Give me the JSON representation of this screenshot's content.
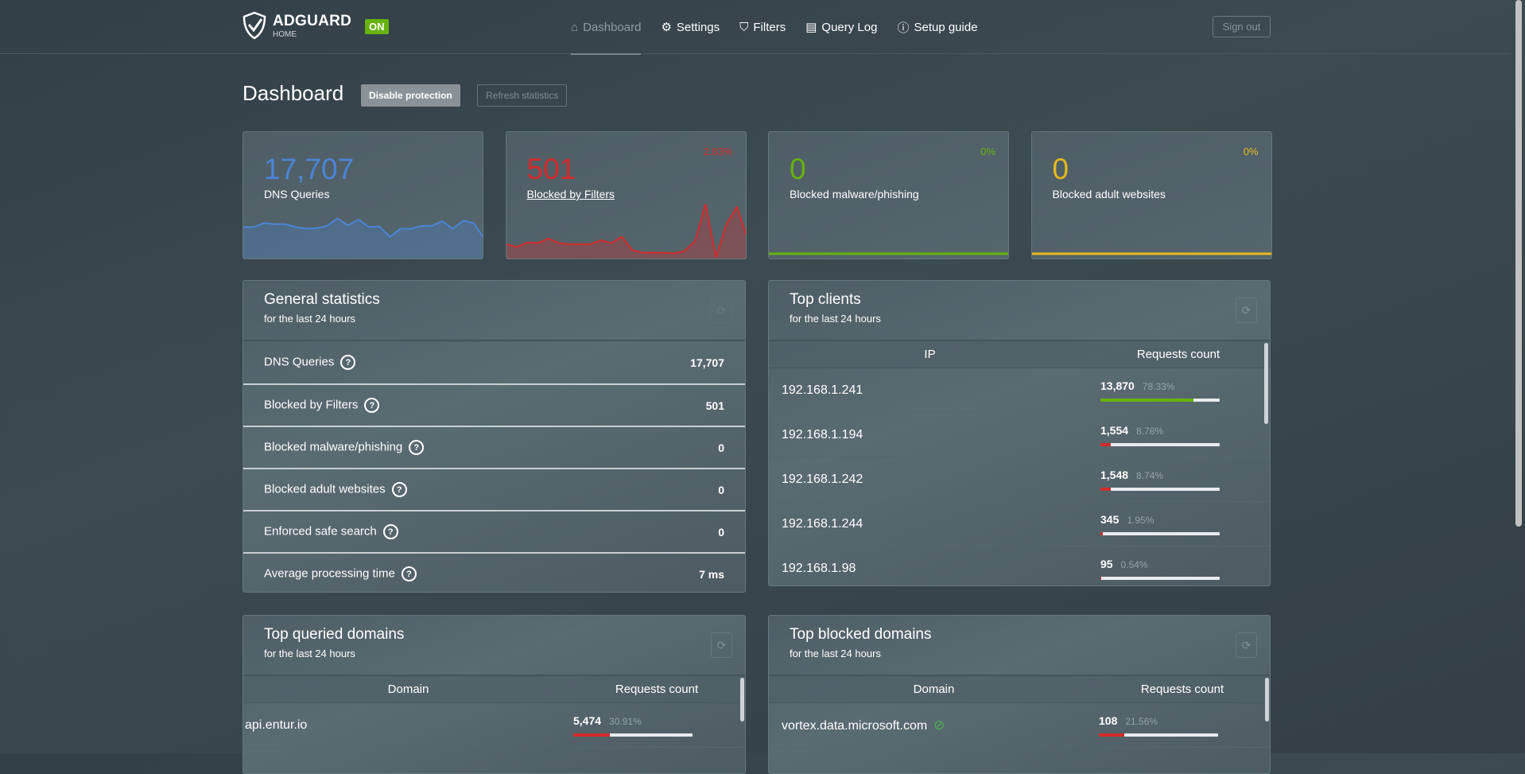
{
  "header": {
    "logo_text": "ADGUARD",
    "logo_sub": "HOME",
    "status_badge": "ON",
    "nav": [
      {
        "label": "Dashboard",
        "icon": "home-icon",
        "active": true
      },
      {
        "label": "Settings",
        "icon": "gear-icon"
      },
      {
        "label": "Filters",
        "icon": "filter-icon"
      },
      {
        "label": "Query Log",
        "icon": "document-icon"
      },
      {
        "label": "Setup guide",
        "icon": "help-circle-icon"
      }
    ],
    "sign_out": "Sign out"
  },
  "page": {
    "title": "Dashboard",
    "disable_protection": "Disable protection",
    "refresh_statistics": "Refresh statistics"
  },
  "colors": {
    "blue": "#4a84d6",
    "red": "#d32b2b",
    "green": "#67b20c",
    "yellow": "#e5b91c"
  },
  "cards": [
    {
      "value": "17,707",
      "label": "DNS Queries",
      "percent": "",
      "sparkline": [
        0.55,
        0.55,
        0.62,
        0.6,
        0.6,
        0.55,
        0.52,
        0.53,
        0.57,
        0.7,
        0.58,
        0.68,
        0.55,
        0.56,
        0.38,
        0.52,
        0.52,
        0.57,
        0.57,
        0.65,
        0.52,
        0.66,
        0.62,
        0.35
      ]
    },
    {
      "value": "501",
      "label": "Blocked by Filters",
      "percent": "2.83%",
      "sparkline": [
        0.25,
        0.2,
        0.28,
        0.27,
        0.35,
        0.27,
        0.25,
        0.25,
        0.25,
        0.32,
        0.27,
        0.38,
        0.15,
        0.1,
        0.1,
        0.1,
        0.09,
        0.13,
        0.3,
        0.95,
        0.02,
        0.6,
        0.9,
        0.35
      ]
    },
    {
      "value": "0",
      "label": "Blocked malware/phishing",
      "percent": "0%",
      "sparkline": [
        0,
        0
      ]
    },
    {
      "value": "0",
      "label": "Blocked adult websites",
      "percent": "0%",
      "sparkline": [
        0,
        0
      ]
    }
  ],
  "general": {
    "title": "General statistics",
    "subtitle": "for the last 24 hours",
    "rows": [
      {
        "label": "DNS Queries",
        "value": "17,707"
      },
      {
        "label": "Blocked by Filters",
        "value": "501"
      },
      {
        "label": "Blocked malware/phishing",
        "value": "0"
      },
      {
        "label": "Blocked adult websites",
        "value": "0"
      },
      {
        "label": "Enforced safe search",
        "value": "0"
      },
      {
        "label": "Average processing time",
        "value": "7 ms"
      }
    ]
  },
  "clients": {
    "title": "Top clients",
    "subtitle": "for the last 24 hours",
    "col1": "IP",
    "col2": "Requests count",
    "rows": [
      {
        "ip": "192.168.1.241",
        "count": "13,870",
        "pct": "78.33%",
        "fill": 78.33,
        "color": "green"
      },
      {
        "ip": "192.168.1.194",
        "count": "1,554",
        "pct": "8.78%",
        "fill": 8.78,
        "color": "red"
      },
      {
        "ip": "192.168.1.242",
        "count": "1,548",
        "pct": "8.74%",
        "fill": 8.74,
        "color": "red"
      },
      {
        "ip": "192.168.1.244",
        "count": "345",
        "pct": "1.95%",
        "fill": 1.95,
        "color": "red"
      },
      {
        "ip": "192.168.1.98",
        "count": "95",
        "pct": "0.54%",
        "fill": 0.54,
        "color": "red"
      }
    ]
  },
  "queried": {
    "title": "Top queried domains",
    "subtitle": "for the last 24 hours",
    "col1": "Domain",
    "col2": "Requests count",
    "rows": [
      {
        "domain": "api.entur.io",
        "count": "5,474",
        "pct": "30.91%",
        "fill": 30.91
      }
    ]
  },
  "blocked": {
    "title": "Top blocked domains",
    "subtitle": "for the last 24 hours",
    "col1": "Domain",
    "col2": "Requests count",
    "rows": [
      {
        "domain": "vortex.data.microsoft.com",
        "count": "108",
        "pct": "21.56%",
        "fill": 21.56,
        "icon": "eye-off-icon"
      }
    ]
  }
}
